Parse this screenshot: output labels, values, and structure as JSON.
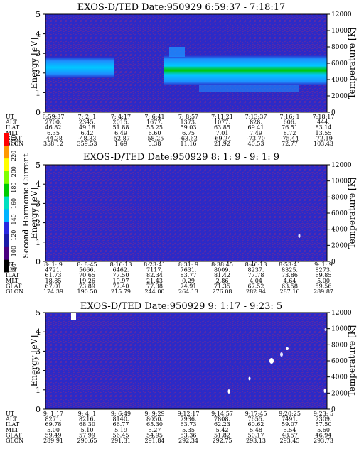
{
  "chart_data": [
    {
      "type": "heatmap",
      "title": "EXOS-D/TED   Date:950929  6:59:37 - 7:18:17",
      "ylabel": "Energy [eV]",
      "ylim": [
        0,
        5
      ],
      "y_ticks": [
        "0",
        "1",
        "2",
        "3",
        "4",
        "5"
      ],
      "right_label": "Temperature [K]",
      "right_ticks": [
        "0",
        "2000",
        "4000",
        "6000",
        "8000",
        "10000",
        "12000"
      ],
      "rows": [
        {
          "label": "UT",
          "values": [
            "6:59:37",
            "7: 2: 1",
            "7: 4:17",
            "7: 6:41",
            "7: 8:57",
            "7:11:21",
            "7:13:37",
            "7:16: 1",
            "7:18:17"
          ]
        },
        {
          "label": "ALT",
          "values": [
            "2700.",
            "2345.",
            "2015.",
            "1677.",
            "1373.",
            "1077.",
            "828.",
            "606.",
            "444."
          ]
        },
        {
          "label": "ILAT",
          "values": [
            "46.82",
            "49.18",
            "51.88",
            "55.25",
            "59.03",
            "63.85",
            "69.41",
            "76.51",
            "83.14"
          ]
        },
        {
          "label": "MLT",
          "values": [
            "6.35",
            "6.42",
            "6.49",
            "6.60",
            "6.75",
            "7.01",
            "7.49",
            "8.72",
            "13.55"
          ]
        },
        {
          "label": "GLAT",
          "values": [
            "-44.28",
            "-48.33",
            "-52.87",
            "-58.25",
            "-63.62",
            "-69.24",
            "-73.70",
            "-75.44",
            "-72.19"
          ]
        },
        {
          "label": "GLON",
          "values": [
            "358.12",
            "359.53",
            "1.69",
            "5.38",
            "11.16",
            "21.92",
            "40.53",
            "72.77",
            "103.43"
          ]
        }
      ]
    },
    {
      "type": "heatmap",
      "title": "EXOS-D/TED   Date:950929  8: 1: 9 - 9: 1: 9",
      "ylabel": "Energy [eV]",
      "ylim": [
        0,
        5
      ],
      "y_ticks": [
        "0",
        "1",
        "2",
        "3",
        "4",
        "5"
      ],
      "right_label": "Temperature [K]",
      "right_ticks": [
        "0",
        "2000",
        "4000",
        "6000",
        "8000",
        "10000",
        "12000"
      ],
      "rows": [
        {
          "label": "UT",
          "values": [
            "8: 1: 9",
            "8: 8:45",
            "8:16:13",
            "8:23:41",
            "8:31: 9",
            "8:38:45",
            "8:46:13",
            "8:53:41",
            "9: 1: 9"
          ]
        },
        {
          "label": "ALT",
          "values": [
            "4721.",
            "5666.",
            "6462.",
            "7117.",
            "7631.",
            "8009.",
            "8237.",
            "8325.",
            "8273."
          ]
        },
        {
          "label": "ILAT",
          "values": [
            "61.73",
            "70.65",
            "77.50",
            "82.34",
            "83.77",
            "81.42",
            "77.78",
            "73.86",
            "69.85"
          ]
        },
        {
          "label": "MLT",
          "values": [
            "18.85",
            "19.26",
            "19.97",
            "21.43",
            "0.29",
            "2.86",
            "4.04",
            "4.64",
            "5.00"
          ]
        },
        {
          "label": "GLAT",
          "values": [
            "67.01",
            "73.89",
            "77.40",
            "77.38",
            "74.91",
            "71.35",
            "67.52",
            "63.58",
            "59.56"
          ]
        },
        {
          "label": "GLON",
          "values": [
            "174.39",
            "190.50",
            "215.79",
            "244.00",
            "264.13",
            "276.08",
            "282.94",
            "287.16",
            "289.87"
          ]
        }
      ]
    },
    {
      "type": "heatmap",
      "title": "EXOS-D/TED   Date:950929  9: 1:17 - 9:23: 5",
      "ylabel": "Energy [eV]",
      "ylim": [
        0,
        5
      ],
      "y_ticks": [
        "0",
        "1",
        "2",
        "3",
        "4",
        "5"
      ],
      "right_label": "Temperature [K]",
      "right_ticks": [
        "0",
        "2000",
        "4000",
        "6000",
        "8000",
        "10000",
        "12000"
      ],
      "rows": [
        {
          "label": "UT",
          "values": [
            "9: 1:17",
            "9: 4: 1",
            "9: 6:49",
            "9: 9:29",
            "9:12:17",
            "9:14:57",
            "9:17:45",
            "9:20:25",
            "9:23: 5"
          ]
        },
        {
          "label": "ALT",
          "values": [
            "8271.",
            "8216.",
            "8140.",
            "8050.",
            "7936.",
            "7808.",
            "7655.",
            "7491.",
            "7309."
          ]
        },
        {
          "label": "ILAT",
          "values": [
            "69.78",
            "68.30",
            "66.77",
            "65.30",
            "63.73",
            "62.23",
            "60.62",
            "59.07",
            "57.50"
          ]
        },
        {
          "label": "MLT",
          "values": [
            "5.00",
            "5.10",
            "5.19",
            "5.27",
            "5.35",
            "5.42",
            "5.48",
            "5.54",
            "5.60"
          ]
        },
        {
          "label": "GLAT",
          "values": [
            "59.49",
            "57.99",
            "56.45",
            "54.95",
            "53.36",
            "51.82",
            "50.17",
            "48.57",
            "46.94"
          ]
        },
        {
          "label": "GLON",
          "values": [
            "289.91",
            "290.65",
            "291.31",
            "291.84",
            "292.34",
            "292.75",
            "293.13",
            "293.45",
            "293.73"
          ]
        }
      ]
    }
  ],
  "colorbar": {
    "label": "Second Harmonic Current",
    "ticks": [
      "80",
      "100",
      "120",
      "140",
      "160",
      "180",
      "200",
      "220",
      "240"
    ],
    "colors": [
      "#000000",
      "#4a0080",
      "#1a1aa8",
      "#2828e0",
      "#00b4ff",
      "#00e0c0",
      "#00cc00",
      "#80ff00",
      "#ffff00",
      "#ff9900",
      "#ff0000"
    ]
  },
  "colors": {
    "background": "#2a2ac8",
    "band_strong": "#00c800",
    "band_mid": "#00c8ff",
    "band_weak": "#1e90ff"
  }
}
